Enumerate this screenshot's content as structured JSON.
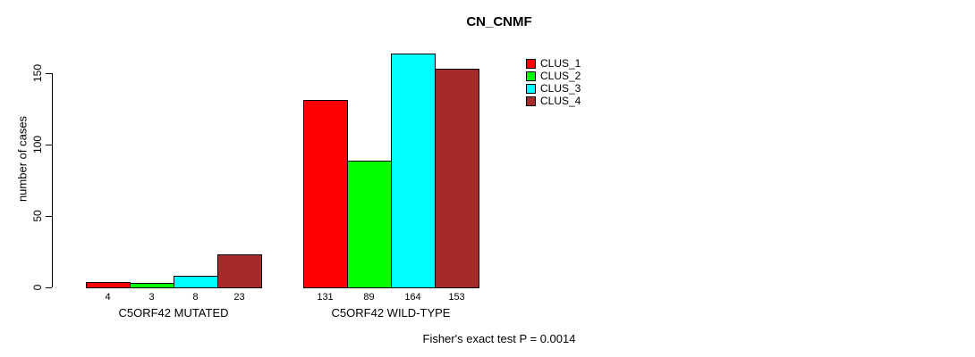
{
  "window": {
    "background": "#ffffff"
  },
  "chart_data": {
    "type": "bar",
    "title": "CN_CNMF",
    "xlabel": "",
    "ylabel": "number of cases",
    "annotation": "Fisher's exact test P = 0.0014",
    "categories": [
      "C5ORF42 MUTATED",
      "C5ORF42 WILD-TYPE"
    ],
    "series": [
      {
        "name": "CLUS_1",
        "color": "#FF0000",
        "values": [
          4,
          131
        ]
      },
      {
        "name": "CLUS_2",
        "color": "#00FF00",
        "values": [
          3,
          89
        ]
      },
      {
        "name": "CLUS_3",
        "color": "#00FFFF",
        "values": [
          8,
          164
        ]
      },
      {
        "name": "CLUS_4",
        "color": "#A52A2A",
        "values": [
          23,
          153
        ]
      }
    ],
    "bar_value_labels": [
      [
        4,
        3,
        8,
        23
      ],
      [
        131,
        89,
        164,
        153
      ]
    ],
    "yticks": [
      0,
      50,
      100,
      150
    ],
    "ylim": [
      0,
      164
    ],
    "grid": false,
    "legend": {
      "position": "top-right",
      "entries": [
        "CLUS_1",
        "CLUS_2",
        "CLUS_3",
        "CLUS_4"
      ]
    }
  }
}
